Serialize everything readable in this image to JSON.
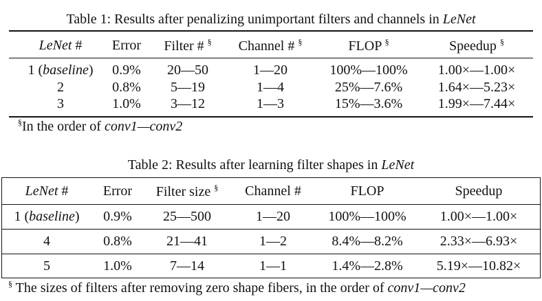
{
  "table1": {
    "caption": [
      "Table 1: Results after penalizing unimportant filters and channels in ",
      {
        "italic": "LeNet"
      }
    ],
    "headers": [
      [
        {
          "italic": "LeNet"
        },
        " #"
      ],
      [
        "Error"
      ],
      [
        "Filter # ",
        {
          "sup": "§"
        }
      ],
      [
        "Channel # ",
        {
          "sup": "§"
        }
      ],
      [
        "FLOP ",
        {
          "sup": "§"
        }
      ],
      [
        "Speedup ",
        {
          "sup": "§"
        }
      ]
    ],
    "rows": [
      [
        [
          "1 (",
          {
            "italic": "baseline"
          },
          ")"
        ],
        [
          "0.9%"
        ],
        [
          "20—50"
        ],
        [
          "1—20"
        ],
        [
          "100%—100%"
        ],
        [
          "1.00×—1.00×"
        ]
      ],
      [
        [
          "2"
        ],
        [
          "0.8%"
        ],
        [
          "5—19"
        ],
        [
          "1—4"
        ],
        [
          "25%—7.6%"
        ],
        [
          "1.64×—5.23×"
        ]
      ],
      [
        [
          "3"
        ],
        [
          "1.0%"
        ],
        [
          "3—12"
        ],
        [
          "1—3"
        ],
        [
          "15%—3.6%"
        ],
        [
          "1.99×—7.44×"
        ]
      ]
    ],
    "footnote": [
      {
        "sup": "§"
      },
      "In the order of ",
      {
        "italic": "conv1—conv2"
      }
    ]
  },
  "table2": {
    "caption": [
      "Table 2: Results after learning filter shapes in ",
      {
        "italic": "LeNet"
      }
    ],
    "headers": [
      [
        {
          "italic": "LeNet"
        },
        " #"
      ],
      [
        "Error"
      ],
      [
        "Filter size ",
        {
          "sup": "§"
        }
      ],
      [
        "Channel #"
      ],
      [
        "FLOP"
      ],
      [
        "Speedup"
      ]
    ],
    "rows": [
      [
        [
          "1 (",
          {
            "italic": "baseline"
          },
          ")"
        ],
        [
          "0.9%"
        ],
        [
          "25—500"
        ],
        [
          "1—20"
        ],
        [
          "100%—100%"
        ],
        [
          "1.00×—1.00×"
        ]
      ],
      [
        [
          "4"
        ],
        [
          "0.8%"
        ],
        [
          "21—41"
        ],
        [
          "1—2"
        ],
        [
          "8.4%—8.2%"
        ],
        [
          "2.33×—6.93×"
        ]
      ],
      [
        [
          "5"
        ],
        [
          "1.0%"
        ],
        [
          "7—14"
        ],
        [
          "1—1"
        ],
        [
          "1.4%—2.8%"
        ],
        [
          "5.19×—10.82×"
        ]
      ]
    ],
    "footnote": [
      {
        "sup": "§"
      },
      " The sizes of filters after removing zero shape fibers, in the order of ",
      {
        "italic": "conv1—conv2"
      }
    ]
  }
}
